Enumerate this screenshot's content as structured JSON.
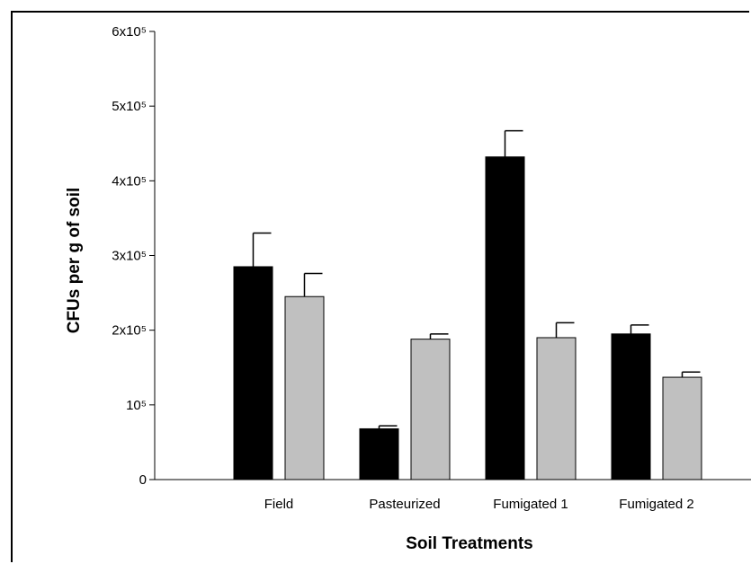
{
  "chart_data": {
    "type": "bar",
    "title": "",
    "xlabel": "Soil Treatments",
    "ylabel": "CFUs per g of soil",
    "categories": [
      "Field",
      "Pasteurized",
      "Fumigated 1",
      "Fumigated 2"
    ],
    "series": [
      {
        "values": [
          285000,
          68000,
          432000,
          195000
        ],
        "errors": [
          45000,
          4000,
          35000,
          12000
        ],
        "color": "#000000"
      },
      {
        "values": [
          245000,
          188000,
          190000,
          137000
        ],
        "errors": [
          31000,
          7000,
          20000,
          7000
        ],
        "color": "#c0c0c0"
      }
    ],
    "ylim": [
      0,
      600000
    ],
    "yticks": [
      {
        "value": 0,
        "label": "0"
      },
      {
        "value": 100000,
        "label": "10⁵"
      },
      {
        "value": 200000,
        "label": "2x10⁵"
      },
      {
        "value": 300000,
        "label": "3x10⁵"
      },
      {
        "value": 400000,
        "label": "4x10⁵"
      },
      {
        "value": 500000,
        "label": "5x10⁵"
      },
      {
        "value": 600000,
        "label": "6x10⁵"
      }
    ],
    "grid": false,
    "legend": "none"
  }
}
